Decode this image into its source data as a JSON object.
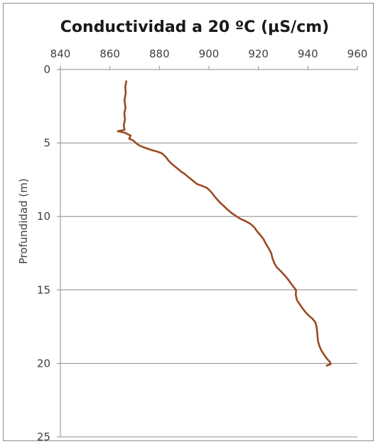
{
  "chart_data": {
    "type": "line",
    "title": "Conductividad  a  20 ºC (µS/cm)",
    "xlabel": "",
    "ylabel": "Profundidad (m)",
    "x_axis_position": "top",
    "y_axis_inverted": true,
    "xlim": [
      840,
      960
    ],
    "ylim": [
      0,
      25
    ],
    "x_ticks": [
      840,
      860,
      880,
      900,
      920,
      940,
      960
    ],
    "y_ticks": [
      0,
      5,
      10,
      15,
      20,
      25
    ],
    "grid": {
      "horizontal": true,
      "vertical": false
    },
    "line_color": "#9b4a22",
    "series": [
      {
        "points": [
          [
            866.6,
            0.8
          ],
          [
            866.2,
            1.2
          ],
          [
            866.4,
            1.6
          ],
          [
            865.9,
            2.1
          ],
          [
            866.3,
            2.6
          ],
          [
            865.8,
            3.0
          ],
          [
            866.1,
            3.4
          ],
          [
            865.6,
            3.8
          ],
          [
            865.9,
            4.1
          ],
          [
            863.2,
            4.2
          ],
          [
            866.0,
            4.3
          ],
          [
            868.4,
            4.5
          ],
          [
            867.8,
            4.7
          ],
          [
            869.6,
            4.85
          ],
          [
            870.8,
            5.05
          ],
          [
            872.2,
            5.2
          ],
          [
            874.6,
            5.35
          ],
          [
            877.3,
            5.5
          ],
          [
            879.4,
            5.6
          ],
          [
            881.0,
            5.7
          ],
          [
            882.6,
            5.95
          ],
          [
            883.7,
            6.2
          ],
          [
            885.2,
            6.45
          ],
          [
            887.0,
            6.7
          ],
          [
            888.8,
            6.95
          ],
          [
            890.2,
            7.1
          ],
          [
            891.6,
            7.3
          ],
          [
            893.4,
            7.55
          ],
          [
            895.3,
            7.8
          ],
          [
            897.0,
            7.9
          ],
          [
            899.2,
            8.05
          ],
          [
            901.0,
            8.35
          ],
          [
            902.6,
            8.7
          ],
          [
            904.2,
            9.0
          ],
          [
            905.8,
            9.25
          ],
          [
            907.3,
            9.5
          ],
          [
            909.0,
            9.75
          ],
          [
            910.8,
            9.95
          ],
          [
            912.6,
            10.15
          ],
          [
            914.6,
            10.3
          ],
          [
            916.8,
            10.5
          ],
          [
            918.4,
            10.75
          ],
          [
            919.4,
            11.0
          ],
          [
            920.7,
            11.25
          ],
          [
            922.1,
            11.55
          ],
          [
            923.0,
            11.85
          ],
          [
            924.1,
            12.15
          ],
          [
            925.2,
            12.5
          ],
          [
            925.7,
            12.85
          ],
          [
            926.5,
            13.2
          ],
          [
            927.4,
            13.45
          ],
          [
            928.9,
            13.7
          ],
          [
            930.3,
            13.95
          ],
          [
            931.6,
            14.2
          ],
          [
            932.9,
            14.5
          ],
          [
            934.0,
            14.75
          ],
          [
            935.2,
            15.0
          ],
          [
            935.1,
            15.35
          ],
          [
            935.6,
            15.7
          ],
          [
            936.8,
            16.0
          ],
          [
            937.8,
            16.25
          ],
          [
            939.0,
            16.5
          ],
          [
            940.4,
            16.75
          ],
          [
            941.8,
            16.95
          ],
          [
            943.0,
            17.2
          ],
          [
            943.5,
            17.5
          ],
          [
            943.7,
            17.8
          ],
          [
            943.9,
            18.15
          ],
          [
            944.1,
            18.5
          ],
          [
            944.6,
            18.8
          ],
          [
            945.4,
            19.1
          ],
          [
            946.5,
            19.4
          ],
          [
            947.8,
            19.7
          ],
          [
            948.9,
            19.9
          ],
          [
            949.2,
            20.05
          ],
          [
            947.6,
            20.15
          ]
        ]
      }
    ]
  }
}
